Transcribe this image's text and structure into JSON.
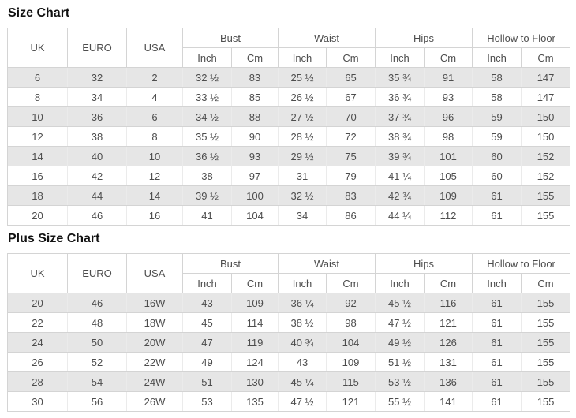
{
  "page_background": "#ffffff",
  "colors": {
    "stripe_row": "#e6e6e6",
    "grid_border": "#d4d4d4",
    "cell_text": "#4d4d4d",
    "title_text": "#111111"
  },
  "tables": [
    {
      "title": "Size Chart",
      "group_headers": [
        {
          "label": "UK",
          "rowspan": 2
        },
        {
          "label": "EURO",
          "rowspan": 2
        },
        {
          "label": "USA",
          "rowspan": 2
        },
        {
          "label": "Bust",
          "colspan": 2
        },
        {
          "label": "Waist",
          "colspan": 2
        },
        {
          "label": "Hips",
          "colspan": 2
        },
        {
          "label": "Hollow to Floor",
          "colspan": 2
        }
      ],
      "unit_headers": [
        "Inch",
        "Cm",
        "Inch",
        "Cm",
        "Inch",
        "Cm",
        "Inch",
        "Cm"
      ],
      "rows": [
        [
          "6",
          "32",
          "2",
          "32 ½",
          "83",
          "25 ½",
          "65",
          "35 ¾",
          "91",
          "58",
          "147"
        ],
        [
          "8",
          "34",
          "4",
          "33 ½",
          "85",
          "26 ½",
          "67",
          "36 ¾",
          "93",
          "58",
          "147"
        ],
        [
          "10",
          "36",
          "6",
          "34 ½",
          "88",
          "27 ½",
          "70",
          "37 ¾",
          "96",
          "59",
          "150"
        ],
        [
          "12",
          "38",
          "8",
          "35 ½",
          "90",
          "28 ½",
          "72",
          "38 ¾",
          "98",
          "59",
          "150"
        ],
        [
          "14",
          "40",
          "10",
          "36 ½",
          "93",
          "29 ½",
          "75",
          "39 ¾",
          "101",
          "60",
          "152"
        ],
        [
          "16",
          "42",
          "12",
          "38",
          "97",
          "31",
          "79",
          "41 ¼",
          "105",
          "60",
          "152"
        ],
        [
          "18",
          "44",
          "14",
          "39 ½",
          "100",
          "32 ½",
          "83",
          "42 ¾",
          "109",
          "61",
          "155"
        ],
        [
          "20",
          "46",
          "16",
          "41",
          "104",
          "34",
          "86",
          "44 ¼",
          "112",
          "61",
          "155"
        ]
      ]
    },
    {
      "title": "Plus Size Chart",
      "group_headers": [
        {
          "label": "UK",
          "rowspan": 2
        },
        {
          "label": "EURO",
          "rowspan": 2
        },
        {
          "label": "USA",
          "rowspan": 2
        },
        {
          "label": "Bust",
          "colspan": 2
        },
        {
          "label": "Waist",
          "colspan": 2
        },
        {
          "label": "Hips",
          "colspan": 2
        },
        {
          "label": "Hollow to Floor",
          "colspan": 2
        }
      ],
      "unit_headers": [
        "Inch",
        "Cm",
        "Inch",
        "Cm",
        "Inch",
        "Cm",
        "Inch",
        "Cm"
      ],
      "rows": [
        [
          "20",
          "46",
          "16W",
          "43",
          "109",
          "36 ¼",
          "92",
          "45 ½",
          "116",
          "61",
          "155"
        ],
        [
          "22",
          "48",
          "18W",
          "45",
          "114",
          "38 ½",
          "98",
          "47 ½",
          "121",
          "61",
          "155"
        ],
        [
          "24",
          "50",
          "20W",
          "47",
          "119",
          "40 ¾",
          "104",
          "49 ½",
          "126",
          "61",
          "155"
        ],
        [
          "26",
          "52",
          "22W",
          "49",
          "124",
          "43",
          "109",
          "51 ½",
          "131",
          "61",
          "155"
        ],
        [
          "28",
          "54",
          "24W",
          "51",
          "130",
          "45 ¼",
          "115",
          "53 ½",
          "136",
          "61",
          "155"
        ],
        [
          "30",
          "56",
          "26W",
          "53",
          "135",
          "47 ½",
          "121",
          "55 ½",
          "141",
          "61",
          "155"
        ]
      ]
    }
  ]
}
